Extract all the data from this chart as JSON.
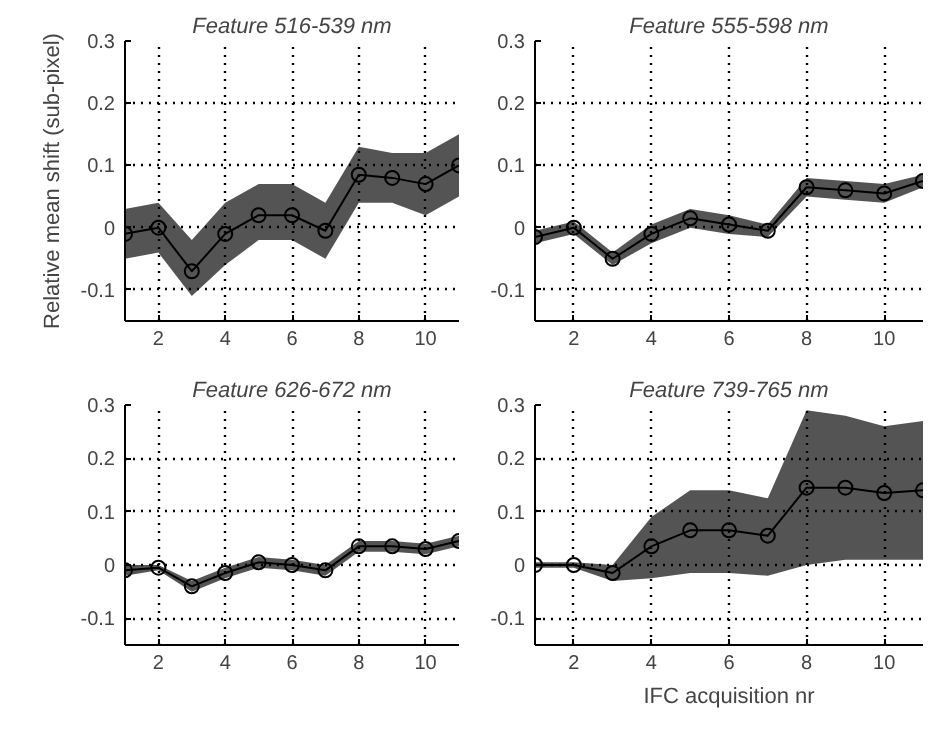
{
  "chart_data": [
    {
      "type": "line",
      "title": "Feature 516-539 nm",
      "ylabel": "Relative mean shift (sub-pixel)",
      "x": [
        1,
        2,
        3,
        4,
        5,
        6,
        7,
        8,
        9,
        10,
        11
      ],
      "xlim": [
        1,
        11
      ],
      "ylim": [
        -0.15,
        0.3
      ],
      "xticks": [
        2,
        4,
        6,
        8,
        10
      ],
      "yticks": [
        -0.1,
        0,
        0.1,
        0.2,
        0.3
      ],
      "grid": true,
      "marker": "circle",
      "line_style": "solid",
      "series": [
        {
          "color": "#000000",
          "values": [
            -0.01,
            0,
            -0.07,
            -0.01,
            0.02,
            0.02,
            -0.005,
            0.085,
            0.08,
            0.07,
            0.1
          ],
          "lower": [
            -0.05,
            -0.04,
            -0.11,
            -0.06,
            -0.02,
            -0.02,
            -0.05,
            0.04,
            0.04,
            0.02,
            0.05
          ],
          "upper": [
            0.03,
            0.04,
            -0.02,
            0.04,
            0.07,
            0.07,
            0.04,
            0.13,
            0.12,
            0.12,
            0.15
          ]
        }
      ]
    },
    {
      "type": "line",
      "title": "Feature 555-598 nm",
      "x": [
        1,
        2,
        3,
        4,
        5,
        6,
        7,
        8,
        9,
        10,
        11
      ],
      "xlim": [
        1,
        11
      ],
      "ylim": [
        -0.15,
        0.3
      ],
      "xticks": [
        2,
        4,
        6,
        8,
        10
      ],
      "yticks": [
        -0.1,
        0,
        0.1,
        0.2,
        0.3
      ],
      "grid": true,
      "marker": "circle",
      "line_style": "solid",
      "series": [
        {
          "color": "#000000",
          "values": [
            -0.015,
            0,
            -0.05,
            -0.01,
            0.015,
            0.005,
            -0.005,
            0.065,
            0.06,
            0.055,
            0.075
          ],
          "lower": [
            -0.025,
            -0.01,
            -0.06,
            -0.025,
            0,
            -0.01,
            -0.015,
            0.05,
            0.045,
            0.04,
            0.065
          ],
          "upper": [
            -0.005,
            0.01,
            -0.04,
            0.005,
            0.03,
            0.02,
            0.005,
            0.08,
            0.075,
            0.07,
            0.085
          ]
        }
      ]
    },
    {
      "type": "line",
      "title": "Feature 626-672 nm",
      "x": [
        1,
        2,
        3,
        4,
        5,
        6,
        7,
        8,
        9,
        10,
        11
      ],
      "xlim": [
        1,
        11
      ],
      "ylim": [
        -0.15,
        0.3
      ],
      "xticks": [
        2,
        4,
        6,
        8,
        10
      ],
      "yticks": [
        -0.1,
        0,
        0.1,
        0.2,
        0.3
      ],
      "grid": true,
      "marker": "circle",
      "line_style": "solid",
      "series": [
        {
          "color": "#000000",
          "values": [
            -0.01,
            -0.005,
            -0.04,
            -0.015,
            0.005,
            0,
            -0.01,
            0.035,
            0.035,
            0.03,
            0.045
          ],
          "lower": [
            -0.02,
            -0.01,
            -0.05,
            -0.025,
            -0.005,
            -0.01,
            -0.02,
            0.025,
            0.025,
            0.02,
            0.035
          ],
          "upper": [
            0,
            0,
            -0.03,
            -0.005,
            0.015,
            0.01,
            0,
            0.045,
            0.045,
            0.04,
            0.055
          ]
        }
      ]
    },
    {
      "type": "line",
      "title": "Feature 739-765 nm",
      "xlabel": "IFC acquisition nr",
      "x": [
        1,
        2,
        3,
        4,
        5,
        6,
        7,
        8,
        9,
        10,
        11
      ],
      "xlim": [
        1,
        11
      ],
      "ylim": [
        -0.15,
        0.3
      ],
      "xticks": [
        2,
        4,
        6,
        8,
        10
      ],
      "yticks": [
        -0.1,
        0,
        0.1,
        0.2,
        0.3
      ],
      "grid": true,
      "marker": "circle",
      "line_style": "solid",
      "series": [
        {
          "color": "#000000",
          "values": [
            0,
            0,
            -0.015,
            0.035,
            0.065,
            0.065,
            0.055,
            0.145,
            0.145,
            0.135,
            0.14
          ],
          "lower": [
            -0.005,
            -0.005,
            -0.03,
            -0.025,
            -0.015,
            -0.015,
            -0.02,
            0,
            0.01,
            0.01,
            0.01
          ],
          "upper": [
            0.005,
            0.005,
            0,
            0.09,
            0.14,
            0.14,
            0.125,
            0.29,
            0.28,
            0.26,
            0.27
          ]
        }
      ]
    }
  ]
}
